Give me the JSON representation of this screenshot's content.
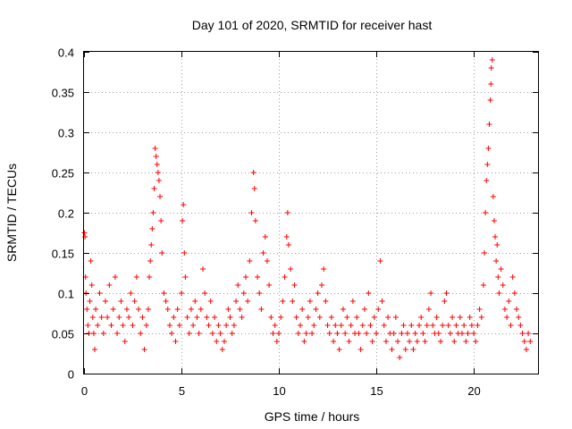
{
  "chart_data": {
    "type": "scatter",
    "title": "Day 101 of 2020, SRMTID for receiver hast",
    "xlabel": "GPS time / hours",
    "ylabel": "SRMTID / TECUs",
    "xlim": [
      0,
      23.3
    ],
    "ylim": [
      0,
      0.4
    ],
    "xticks": [
      0,
      5,
      10,
      15,
      20
    ],
    "xtick_labels": [
      "0",
      "5",
      "10",
      "15",
      "20"
    ],
    "yticks": [
      0,
      0.05,
      0.1,
      0.15,
      0.2,
      0.25,
      0.3,
      0.35,
      0.4
    ],
    "ytick_labels": [
      "0",
      "0.05",
      "0.1",
      "0.15",
      "0.2",
      "0.25",
      "0.3",
      "0.35",
      "0.4"
    ],
    "grid": true,
    "marker": "plus",
    "series": [
      {
        "name": "SRMTID",
        "color": "#ff0000",
        "points": [
          [
            0.02,
            0.175
          ],
          [
            0.05,
            0.17
          ],
          [
            0.08,
            0.12
          ],
          [
            0.1,
            0.1
          ],
          [
            0.15,
            0.08
          ],
          [
            0.2,
            0.06
          ],
          [
            0.25,
            0.05
          ],
          [
            0.3,
            0.09
          ],
          [
            0.35,
            0.14
          ],
          [
            0.4,
            0.11
          ],
          [
            0.45,
            0.07
          ],
          [
            0.5,
            0.05
          ],
          [
            0.55,
            0.03
          ],
          [
            0.6,
            0.08
          ],
          [
            0.7,
            0.06
          ],
          [
            0.8,
            0.1
          ],
          [
            0.9,
            0.07
          ],
          [
            1.0,
            0.05
          ],
          [
            1.1,
            0.09
          ],
          [
            1.2,
            0.07
          ],
          [
            1.3,
            0.11
          ],
          [
            1.4,
            0.06
          ],
          [
            1.5,
            0.08
          ],
          [
            1.6,
            0.12
          ],
          [
            1.7,
            0.05
          ],
          [
            1.8,
            0.07
          ],
          [
            1.9,
            0.09
          ],
          [
            2.0,
            0.06
          ],
          [
            2.1,
            0.04
          ],
          [
            2.2,
            0.08
          ],
          [
            2.3,
            0.07
          ],
          [
            2.4,
            0.1
          ],
          [
            2.5,
            0.06
          ],
          [
            2.6,
            0.09
          ],
          [
            2.7,
            0.12
          ],
          [
            2.8,
            0.08
          ],
          [
            2.9,
            0.05
          ],
          [
            3.0,
            0.07
          ],
          [
            3.1,
            0.03
          ],
          [
            3.2,
            0.06
          ],
          [
            3.3,
            0.08
          ],
          [
            3.35,
            0.12
          ],
          [
            3.4,
            0.14
          ],
          [
            3.45,
            0.16
          ],
          [
            3.5,
            0.18
          ],
          [
            3.55,
            0.2
          ],
          [
            3.6,
            0.23
          ],
          [
            3.65,
            0.28
          ],
          [
            3.7,
            0.27
          ],
          [
            3.75,
            0.26
          ],
          [
            3.8,
            0.25
          ],
          [
            3.85,
            0.24
          ],
          [
            3.9,
            0.22
          ],
          [
            3.95,
            0.19
          ],
          [
            4.0,
            0.15
          ],
          [
            4.1,
            0.1
          ],
          [
            4.2,
            0.09
          ],
          [
            4.3,
            0.08
          ],
          [
            4.4,
            0.06
          ],
          [
            4.5,
            0.05
          ],
          [
            4.6,
            0.07
          ],
          [
            4.7,
            0.04
          ],
          [
            4.8,
            0.08
          ],
          [
            4.9,
            0.06
          ],
          [
            5.0,
            0.1
          ],
          [
            5.05,
            0.19
          ],
          [
            5.1,
            0.21
          ],
          [
            5.15,
            0.15
          ],
          [
            5.2,
            0.12
          ],
          [
            5.3,
            0.07
          ],
          [
            5.4,
            0.05
          ],
          [
            5.5,
            0.08
          ],
          [
            5.6,
            0.06
          ],
          [
            5.7,
            0.09
          ],
          [
            5.8,
            0.07
          ],
          [
            5.9,
            0.05
          ],
          [
            6.0,
            0.08
          ],
          [
            6.1,
            0.13
          ],
          [
            6.2,
            0.1
          ],
          [
            6.3,
            0.07
          ],
          [
            6.4,
            0.06
          ],
          [
            6.5,
            0.09
          ],
          [
            6.6,
            0.05
          ],
          [
            6.7,
            0.07
          ],
          [
            6.8,
            0.04
          ],
          [
            6.9,
            0.06
          ],
          [
            7.0,
            0.05
          ],
          [
            7.1,
            0.03
          ],
          [
            7.2,
            0.04
          ],
          [
            7.3,
            0.06
          ],
          [
            7.4,
            0.08
          ],
          [
            7.5,
            0.07
          ],
          [
            7.6,
            0.05
          ],
          [
            7.7,
            0.06
          ],
          [
            7.8,
            0.09
          ],
          [
            7.9,
            0.11
          ],
          [
            8.0,
            0.08
          ],
          [
            8.1,
            0.07
          ],
          [
            8.2,
            0.1
          ],
          [
            8.3,
            0.12
          ],
          [
            8.4,
            0.09
          ],
          [
            8.5,
            0.14
          ],
          [
            8.6,
            0.2
          ],
          [
            8.7,
            0.25
          ],
          [
            8.75,
            0.23
          ],
          [
            8.8,
            0.19
          ],
          [
            8.9,
            0.12
          ],
          [
            9.0,
            0.1
          ],
          [
            9.1,
            0.08
          ],
          [
            9.2,
            0.15
          ],
          [
            9.3,
            0.17
          ],
          [
            9.4,
            0.14
          ],
          [
            9.5,
            0.11
          ],
          [
            9.6,
            0.07
          ],
          [
            9.7,
            0.05
          ],
          [
            9.8,
            0.06
          ],
          [
            9.9,
            0.04
          ],
          [
            10.0,
            0.05
          ],
          [
            10.1,
            0.07
          ],
          [
            10.2,
            0.09
          ],
          [
            10.3,
            0.12
          ],
          [
            10.4,
            0.17
          ],
          [
            10.45,
            0.2
          ],
          [
            10.5,
            0.16
          ],
          [
            10.6,
            0.13
          ],
          [
            10.7,
            0.09
          ],
          [
            10.8,
            0.11
          ],
          [
            10.9,
            0.07
          ],
          [
            11.0,
            0.05
          ],
          [
            11.1,
            0.06
          ],
          [
            11.2,
            0.08
          ],
          [
            11.3,
            0.04
          ],
          [
            11.4,
            0.05
          ],
          [
            11.5,
            0.07
          ],
          [
            11.6,
            0.09
          ],
          [
            11.7,
            0.05
          ],
          [
            11.8,
            0.06
          ],
          [
            11.9,
            0.08
          ],
          [
            12.0,
            0.1
          ],
          [
            12.1,
            0.07
          ],
          [
            12.2,
            0.11
          ],
          [
            12.3,
            0.13
          ],
          [
            12.4,
            0.09
          ],
          [
            12.5,
            0.06
          ],
          [
            12.6,
            0.05
          ],
          [
            12.7,
            0.07
          ],
          [
            12.8,
            0.04
          ],
          [
            12.9,
            0.06
          ],
          [
            13.0,
            0.05
          ],
          [
            13.1,
            0.03
          ],
          [
            13.2,
            0.06
          ],
          [
            13.3,
            0.08
          ],
          [
            13.4,
            0.05
          ],
          [
            13.5,
            0.07
          ],
          [
            13.6,
            0.04
          ],
          [
            13.7,
            0.06
          ],
          [
            13.8,
            0.09
          ],
          [
            13.9,
            0.05
          ],
          [
            14.0,
            0.07
          ],
          [
            14.1,
            0.05
          ],
          [
            14.2,
            0.03
          ],
          [
            14.3,
            0.06
          ],
          [
            14.4,
            0.08
          ],
          [
            14.5,
            0.05
          ],
          [
            14.6,
            0.1
          ],
          [
            14.7,
            0.06
          ],
          [
            14.8,
            0.04
          ],
          [
            14.9,
            0.07
          ],
          [
            15.0,
            0.05
          ],
          [
            15.1,
            0.08
          ],
          [
            15.2,
            0.14
          ],
          [
            15.3,
            0.09
          ],
          [
            15.4,
            0.06
          ],
          [
            15.5,
            0.04
          ],
          [
            15.6,
            0.07
          ],
          [
            15.7,
            0.05
          ],
          [
            15.8,
            0.03
          ],
          [
            15.9,
            0.05
          ],
          [
            16.0,
            0.07
          ],
          [
            16.1,
            0.04
          ],
          [
            16.2,
            0.02
          ],
          [
            16.3,
            0.05
          ],
          [
            16.4,
            0.06
          ],
          [
            16.5,
            0.03
          ],
          [
            16.6,
            0.05
          ],
          [
            16.7,
            0.04
          ],
          [
            16.8,
            0.06
          ],
          [
            16.9,
            0.03
          ],
          [
            17.0,
            0.05
          ],
          [
            17.1,
            0.04
          ],
          [
            17.2,
            0.06
          ],
          [
            17.3,
            0.07
          ],
          [
            17.4,
            0.05
          ],
          [
            17.5,
            0.04
          ],
          [
            17.6,
            0.06
          ],
          [
            17.7,
            0.08
          ],
          [
            17.8,
            0.1
          ],
          [
            17.9,
            0.06
          ],
          [
            18.0,
            0.05
          ],
          [
            18.1,
            0.07
          ],
          [
            18.2,
            0.05
          ],
          [
            18.3,
            0.04
          ],
          [
            18.4,
            0.06
          ],
          [
            18.5,
            0.09
          ],
          [
            18.6,
            0.1
          ],
          [
            18.7,
            0.06
          ],
          [
            18.8,
            0.05
          ],
          [
            18.9,
            0.07
          ],
          [
            19.0,
            0.04
          ],
          [
            19.1,
            0.06
          ],
          [
            19.2,
            0.05
          ],
          [
            19.3,
            0.07
          ],
          [
            19.4,
            0.05
          ],
          [
            19.5,
            0.06
          ],
          [
            19.6,
            0.04
          ],
          [
            19.7,
            0.05
          ],
          [
            19.8,
            0.07
          ],
          [
            19.9,
            0.06
          ],
          [
            20.0,
            0.05
          ],
          [
            20.1,
            0.04
          ],
          [
            20.2,
            0.06
          ],
          [
            20.3,
            0.08
          ],
          [
            20.4,
            0.07
          ],
          [
            20.5,
            0.11
          ],
          [
            20.55,
            0.15
          ],
          [
            20.6,
            0.2
          ],
          [
            20.65,
            0.24
          ],
          [
            20.7,
            0.26
          ],
          [
            20.75,
            0.28
          ],
          [
            20.8,
            0.31
          ],
          [
            20.85,
            0.34
          ],
          [
            20.88,
            0.36
          ],
          [
            20.9,
            0.38
          ],
          [
            20.95,
            0.39
          ],
          [
            21.0,
            0.22
          ],
          [
            21.05,
            0.19
          ],
          [
            21.1,
            0.17
          ],
          [
            21.15,
            0.14
          ],
          [
            21.2,
            0.16
          ],
          [
            21.25,
            0.12
          ],
          [
            21.3,
            0.1
          ],
          [
            21.4,
            0.13
          ],
          [
            21.5,
            0.11
          ],
          [
            21.6,
            0.08
          ],
          [
            21.7,
            0.07
          ],
          [
            21.8,
            0.09
          ],
          [
            21.9,
            0.06
          ],
          [
            22.0,
            0.12
          ],
          [
            22.1,
            0.1
          ],
          [
            22.2,
            0.08
          ],
          [
            22.3,
            0.07
          ],
          [
            22.4,
            0.06
          ],
          [
            22.5,
            0.05
          ],
          [
            22.6,
            0.04
          ],
          [
            22.7,
            0.03
          ],
          [
            22.8,
            0.05
          ],
          [
            22.9,
            0.04
          ]
        ]
      }
    ]
  }
}
